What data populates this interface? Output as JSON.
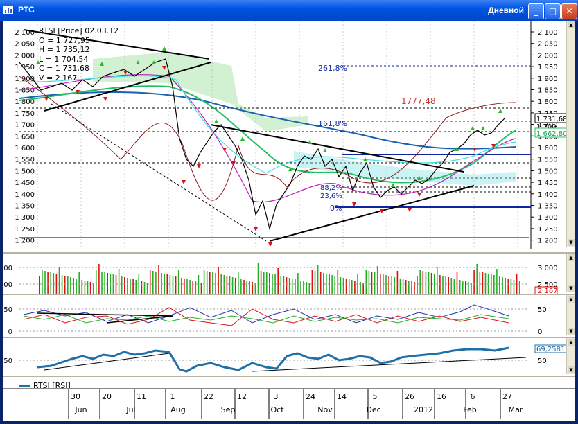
{
  "window": {
    "title": "РТС",
    "period": "Дневной",
    "buttons": {
      "minimize": "_",
      "maximize": "□",
      "close": "✕"
    }
  },
  "price_panel": {
    "info_lines": [
      "RTSI [Price] 02.03.12",
      "O = 1 727,95",
      "H = 1 735,12",
      "L = 1 704,54",
      "C = 1 731,68",
      "V = 2 167"
    ],
    "y_ticks": [
      "2 100",
      "2 050",
      "2 000",
      "1 950",
      "1 900",
      "1 850",
      "1 800",
      "1 750",
      "1 700",
      "1 650",
      "1 600",
      "1 550",
      "1 500",
      "1 450",
      "1 400",
      "1 350",
      "1 300",
      "1 250",
      "1 200"
    ],
    "fib_labels": [
      "261,8%",
      "161,8%",
      "0%"
    ],
    "fib_partial": [
      "88,2%",
      "23,6%"
    ],
    "peak_label": "1777,48",
    "last_price": "1 731,68",
    "last_ma": "1 662,80",
    "axis_extra": "1 700"
  },
  "volume_panel": {
    "y_ticks": [
      "3 000",
      "2 500"
    ],
    "last_volume": "2 167"
  },
  "dmi_panel": {
    "y_ticks": [
      "50",
      "0"
    ]
  },
  "rsi_panel": {
    "y_ticks": [
      "50"
    ],
    "last_value": "69,25817",
    "legend_label": "RTSI [RSI]"
  },
  "x_axis": {
    "days": [
      "30",
      "20",
      "11",
      "1",
      "22",
      "12",
      "3",
      "24",
      "14",
      "5",
      "26",
      "16",
      "6",
      "27"
    ],
    "months": [
      "Jun",
      "Jul",
      "Aug",
      "Sep",
      "Oct",
      "Nov",
      "Dec",
      "2012",
      "Feb",
      "Mar"
    ]
  },
  "colors": {
    "titlebar": "#0054e3",
    "up_arrow": "#22c022",
    "down_arrow": "#dd1111",
    "ma_blue": "#1a5fb4",
    "ma_green": "#20c060",
    "cloud": "#7dd87d"
  }
}
